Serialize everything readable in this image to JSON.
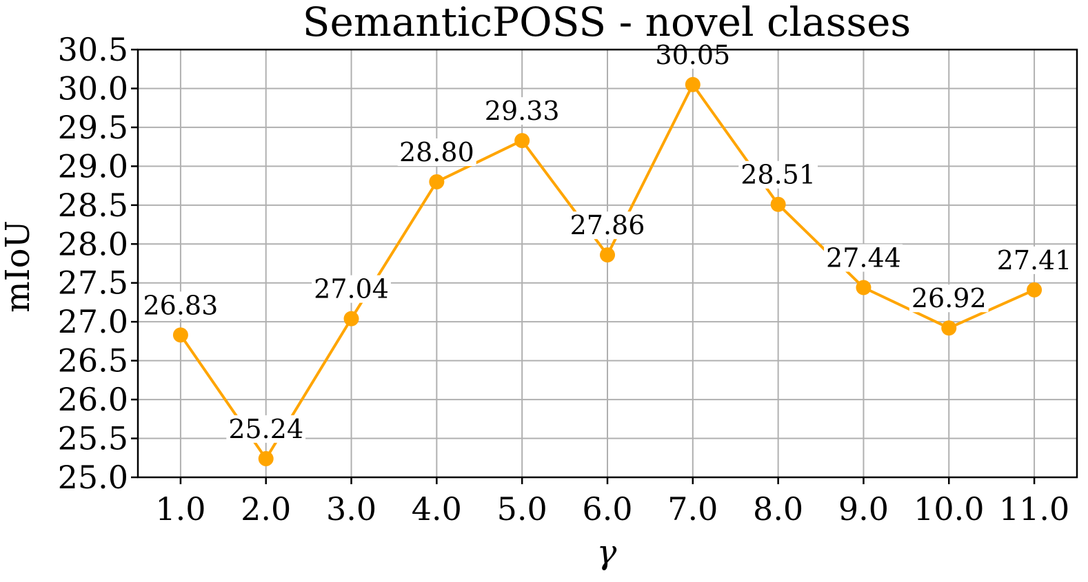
{
  "chart_data": {
    "type": "line",
    "title": "SemanticPOSS - novel classes",
    "xlabel": "γ",
    "ylabel": "mIoU",
    "x": [
      1.0,
      2.0,
      3.0,
      4.0,
      5.0,
      6.0,
      7.0,
      8.0,
      9.0,
      10.0,
      11.0
    ],
    "x_tick_labels": [
      "1.0",
      "2.0",
      "3.0",
      "4.0",
      "5.0",
      "6.0",
      "7.0",
      "8.0",
      "9.0",
      "10.0",
      "11.0"
    ],
    "series": [
      {
        "values": [
          26.83,
          25.24,
          27.04,
          28.8,
          29.33,
          27.86,
          30.05,
          28.51,
          27.44,
          26.92,
          27.41
        ],
        "data_labels": [
          "26.83",
          "25.24",
          "27.04",
          "28.80",
          "29.33",
          "27.86",
          "30.05",
          "28.51",
          "27.44",
          "26.92",
          "27.41"
        ],
        "color": "#FFA500"
      }
    ],
    "ylim": [
      25.0,
      30.5
    ],
    "y_ticks": [
      25.0,
      25.5,
      26.0,
      26.5,
      27.0,
      27.5,
      28.0,
      28.5,
      29.0,
      29.5,
      30.0,
      30.5
    ],
    "y_tick_labels": [
      "25.0",
      "25.5",
      "26.0",
      "26.5",
      "27.0",
      "27.5",
      "28.0",
      "28.5",
      "29.0",
      "29.5",
      "30.0",
      "30.5"
    ],
    "grid": true,
    "legend": "none"
  }
}
